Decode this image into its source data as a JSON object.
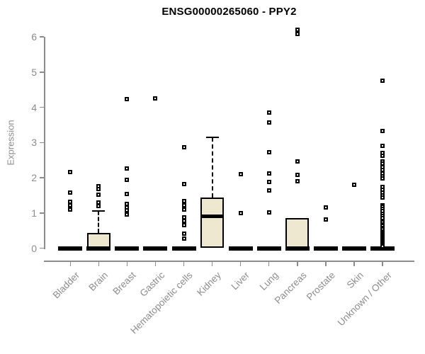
{
  "chart_data": {
    "type": "boxplot",
    "title": "ENSG00000265060 - PPY2",
    "ylabel": "Expression",
    "ylim": [
      0,
      6
    ],
    "yticks": [
      0,
      1,
      2,
      3,
      4,
      5,
      6
    ],
    "grid": false,
    "legend": "none",
    "categories": [
      "Bladder",
      "Brain",
      "Breast",
      "Gastric",
      "Hematopoietic cells",
      "Kidney",
      "Liver",
      "Lung",
      "Pancreas",
      "Prostate",
      "Skin",
      "Unknown / Other"
    ],
    "series": [
      {
        "category": "Bladder",
        "q1": 0,
        "median": 0,
        "q3": 0,
        "whisker_low": 0,
        "whisker_high": 0,
        "outliers": [
          2.16,
          1.57,
          1.32,
          1.22,
          1.1
        ]
      },
      {
        "category": "Brain",
        "q1": 0,
        "median": 0,
        "q3": 0.43,
        "whisker_low": 0,
        "whisker_high": 1.06,
        "outliers": [
          1.76,
          1.68,
          1.51,
          1.29,
          1.19
        ]
      },
      {
        "category": "Breast",
        "q1": 0,
        "median": 0,
        "q3": 0,
        "whisker_low": 0,
        "whisker_high": 0,
        "outliers": [
          4.24,
          2.27,
          1.93,
          1.53,
          1.26,
          1.16,
          1.08,
          0.96
        ]
      },
      {
        "category": "Gastric",
        "q1": 0,
        "median": 0,
        "q3": 0,
        "whisker_low": 0,
        "whisker_high": 0,
        "outliers": [
          4.25
        ]
      },
      {
        "category": "Hematopoietic cells",
        "q1": 0,
        "median": 0,
        "q3": 0,
        "whisker_low": 0,
        "whisker_high": 0,
        "outliers": [
          2.87,
          1.81,
          1.33,
          1.22,
          1.1,
          0.88,
          0.78,
          0.66,
          0.42,
          0.28
        ]
      },
      {
        "category": "Kidney",
        "q1": 0,
        "median": 0.9,
        "q3": 1.43,
        "whisker_low": 0,
        "whisker_high": 3.15,
        "outliers": []
      },
      {
        "category": "Liver",
        "q1": 0,
        "median": 0,
        "q3": 0,
        "whisker_low": 0,
        "whisker_high": 0,
        "outliers": [
          2.1,
          1.0
        ]
      },
      {
        "category": "Lung",
        "q1": 0,
        "median": 0,
        "q3": 0,
        "whisker_low": 0,
        "whisker_high": 0,
        "outliers": [
          3.84,
          3.57,
          2.73,
          2.13,
          1.87,
          1.63,
          1.02
        ]
      },
      {
        "category": "Pancreas",
        "q1": 0,
        "median": 0,
        "q3": 0.85,
        "whisker_low": 0,
        "whisker_high": 0.85,
        "outliers": [
          6.2,
          6.08,
          2.47,
          2.09,
          1.89
        ]
      },
      {
        "category": "Prostate",
        "q1": 0,
        "median": 0,
        "q3": 0,
        "whisker_low": 0,
        "whisker_high": 0,
        "outliers": [
          1.16,
          0.82
        ]
      },
      {
        "category": "Skin",
        "q1": 0,
        "median": 0,
        "q3": 0,
        "whisker_low": 0,
        "whisker_high": 0,
        "outliers": [
          1.8
        ]
      },
      {
        "category": "Unknown / Other",
        "q1": 0,
        "median": 0,
        "q3": 0,
        "whisker_low": 0,
        "whisker_high": 0,
        "outliers": [
          4.75,
          3.32,
          2.9,
          2.7,
          2.62,
          2.47,
          2.4,
          2.3,
          2.22,
          2.12,
          2.05,
          1.98,
          1.73,
          1.65,
          1.57,
          1.5,
          1.43,
          1.22,
          1.17,
          1.12,
          1.05,
          0.98,
          0.92,
          0.86,
          0.78,
          0.73,
          0.68,
          0.63,
          0.58,
          0.53,
          0.48,
          0.44,
          0.4,
          0.36,
          0.32,
          0.28,
          0.24,
          0.2,
          0.16,
          0.12,
          0.08,
          0.05
        ]
      }
    ],
    "colors": {
      "box_fill": "#EEE8D1",
      "box_border": "#000000",
      "axis": "#8C8C8C",
      "tick_label": "#8C8C8C",
      "title": "#000000",
      "background": "#FFFFFF"
    }
  }
}
